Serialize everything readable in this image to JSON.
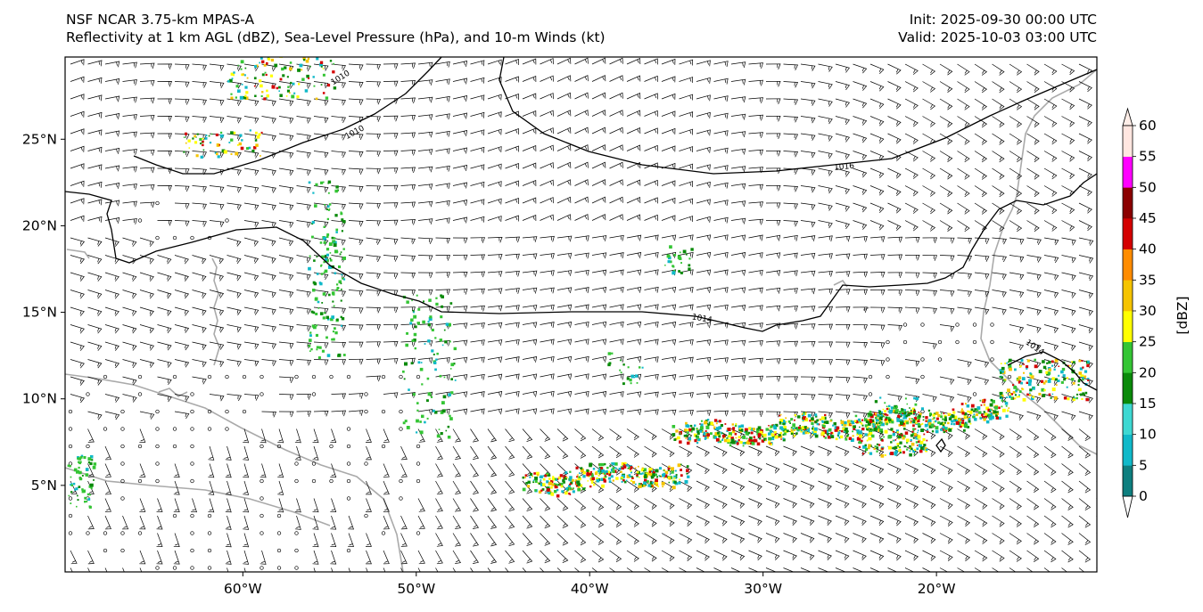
{
  "header": {
    "title": "NSF NCAR 3.75-km MPAS-A",
    "subtitle": "Reflectivity at 1 km AGL (dBZ), Sea-Level Pressure (hPa), and 10-m Winds (kt)",
    "init": "Init: 2025-09-30 00:00 UTC",
    "valid": "Valid: 2025-10-03 03:00 UTC"
  },
  "axes": {
    "lon_ticks": [
      {
        "lon": -60,
        "label": "60°W"
      },
      {
        "lon": -50,
        "label": "50°W"
      },
      {
        "lon": -40,
        "label": "40°W"
      },
      {
        "lon": -30,
        "label": "30°W"
      },
      {
        "lon": -20,
        "label": "20°W"
      }
    ],
    "lat_ticks": [
      {
        "lat": 25,
        "label": "25°N"
      },
      {
        "lat": 20,
        "label": "20°N"
      },
      {
        "lat": 15,
        "label": "15°N"
      },
      {
        "lat": 10,
        "label": "10°N"
      },
      {
        "lat": 5,
        "label": "5°N"
      }
    ]
  },
  "isobars": {
    "labels": [
      "1010",
      "1010",
      "1016",
      "1014",
      "1014"
    ]
  },
  "colorbar": {
    "unit_label": "[dBZ]",
    "levels": [
      0,
      5,
      10,
      15,
      20,
      25,
      30,
      35,
      40,
      45,
      50,
      55,
      60
    ],
    "level_labels": [
      "0",
      "5",
      "10",
      "15",
      "20",
      "25",
      "30",
      "35",
      "40",
      "45",
      "50",
      "55",
      "60"
    ],
    "colors": [
      "#0e7f7f",
      "#10b9c9",
      "#3ed8d2",
      "#0a8a0a",
      "#34c534",
      "#ffff00",
      "#f5c400",
      "#ff8c00",
      "#d40000",
      "#8b0000",
      "#ff00ff",
      "#ffe6e0"
    ],
    "under_color": "#ffffff",
    "over_color": "#ffeee8"
  },
  "colors": {
    "coast": "#aaaaaa",
    "isobar": "#000000",
    "barb": "#000000"
  }
}
